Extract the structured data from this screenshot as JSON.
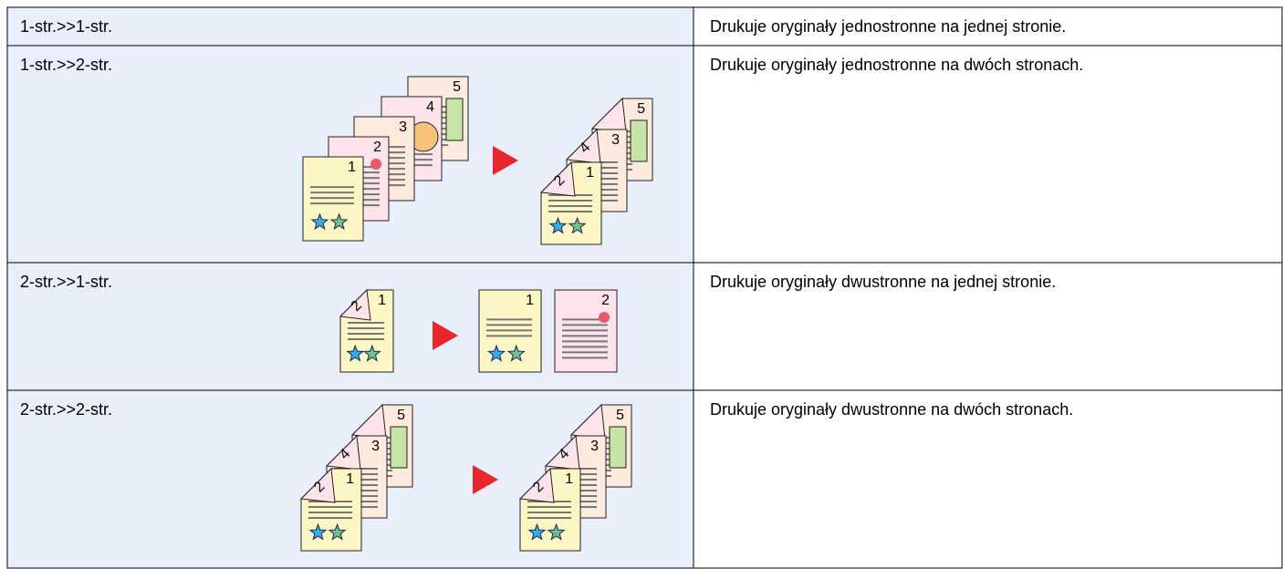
{
  "table": {
    "rows": [
      {
        "mode": "1-str.>>1-str.",
        "description": "Drukuje oryginały jednostronne na jednej stronie."
      },
      {
        "mode": "1-str.>>2-str.",
        "description": "Drukuje oryginały jednostronne na dwóch stronach.",
        "originals": [
          "1",
          "2",
          "3",
          "4",
          "5"
        ],
        "copies": [
          "1",
          "2",
          "3",
          "4",
          "5"
        ]
      },
      {
        "mode": "2-str.>>1-str.",
        "description": "Drukuje oryginały dwustronne na jednej stronie.",
        "originals": [
          "1",
          "2"
        ],
        "copies": [
          "1",
          "2"
        ]
      },
      {
        "mode": "2-str.>>2-str.",
        "description": "Drukuje oryginały dwustronne na dwóch stronach.",
        "originals": [
          "1",
          "2",
          "3",
          "4",
          "5"
        ],
        "copies": [
          "1",
          "2",
          "3",
          "4",
          "5"
        ]
      }
    ]
  }
}
